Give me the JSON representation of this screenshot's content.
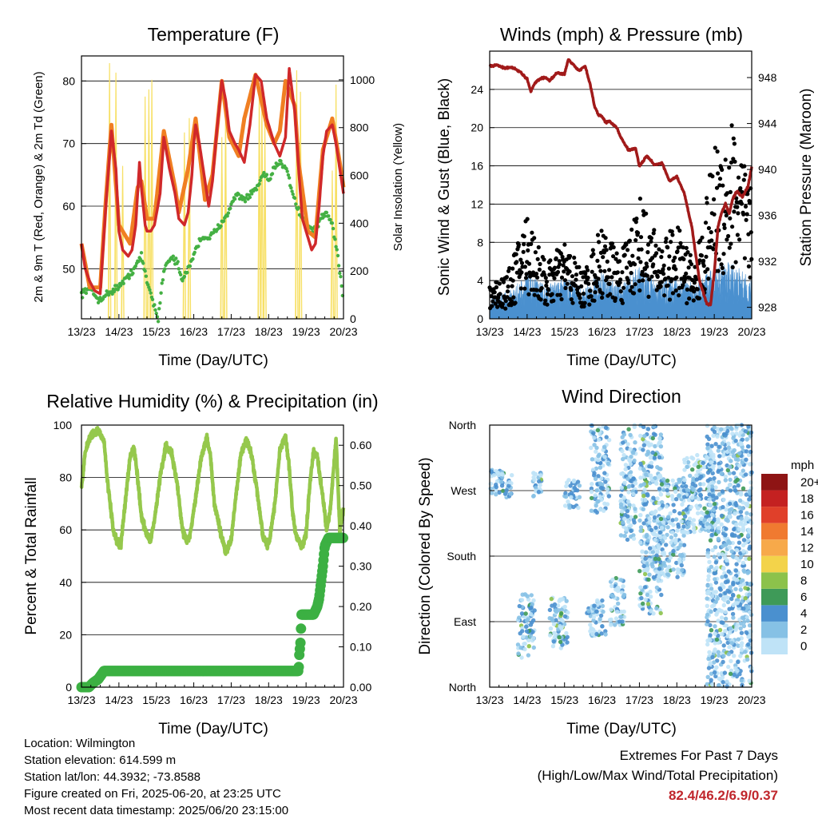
{
  "colors": {
    "temp_2m": "#d0282a",
    "temp_9m": "#f07f22",
    "dewpoint": "#44b043",
    "solar": "#f7e066",
    "wind": "#4a90cf",
    "gust": "#000000",
    "pressure": "#a11a1a",
    "rh": "#95c84c",
    "precip": "#3cb043",
    "extremes_text": "#c0262c"
  },
  "x_ticks": [
    "13/23",
    "14/23",
    "15/23",
    "16/23",
    "17/23",
    "18/23",
    "19/23",
    "20/23"
  ],
  "chart_data": [
    {
      "type": "line",
      "title": "Temperature (F)",
      "xlabel": "Time (Day/UTC)",
      "ylabel": "2m & 9m T (Red, Orange) & 2m Td (Green)",
      "y2label": "Solar Insolation (Yellow)",
      "ylim": [
        42,
        84
      ],
      "yticks": [
        50,
        60,
        70,
        80
      ],
      "y2lim": [
        0,
        1100
      ],
      "y2ticks": [
        0,
        200,
        400,
        600,
        800,
        1000
      ],
      "x_days": [
        0,
        7
      ],
      "grid": true,
      "series": [
        {
          "key": "t2",
          "x": [
            0,
            0.1,
            0.22,
            0.35,
            0.5,
            0.65,
            0.8,
            0.92,
            1.0,
            1.1,
            1.25,
            1.35,
            1.45,
            1.5,
            1.55,
            1.6,
            1.65,
            1.7,
            1.75,
            1.85,
            1.95,
            2.1,
            2.2,
            2.35,
            2.5,
            2.6,
            2.75,
            2.85,
            2.95,
            3.0,
            3.05,
            3.15,
            3.3,
            3.4,
            3.5,
            3.6,
            3.75,
            3.85,
            3.95,
            4.1,
            4.2,
            4.35,
            4.5,
            4.65,
            4.8,
            4.95,
            5.05,
            5.15,
            5.3,
            5.45,
            5.55,
            5.7,
            5.8,
            5.9,
            6.05,
            6.15,
            6.25,
            6.35,
            6.45,
            6.55,
            6.7,
            6.8,
            6.9,
            7.0
          ],
          "values": [
            54,
            50,
            48,
            46.5,
            46,
            60,
            72,
            66,
            56,
            53,
            52,
            53,
            57,
            62,
            67,
            63,
            60,
            57,
            56,
            56,
            57,
            62,
            71,
            66,
            62,
            58,
            57,
            59,
            65,
            70,
            73,
            70,
            64,
            60,
            64,
            71,
            80,
            77,
            72,
            70,
            69,
            67,
            73,
            81,
            80,
            74,
            72,
            70,
            68,
            71,
            82,
            75,
            66,
            58,
            55,
            53,
            54,
            60,
            68,
            72,
            73,
            70,
            66,
            62
          ]
        },
        {
          "key": "t9",
          "x": [
            0,
            0.22,
            0.5,
            0.65,
            0.8,
            1.0,
            1.3,
            1.5,
            1.6,
            1.75,
            1.95,
            2.2,
            2.5,
            2.6,
            2.85,
            3.05,
            3.3,
            3.5,
            3.75,
            3.95,
            4.2,
            4.35,
            4.65,
            4.95,
            5.15,
            5.3,
            5.45,
            5.7,
            5.8,
            6.05,
            6.25,
            6.45,
            6.7,
            6.9,
            7.0
          ],
          "values": [
            54,
            47,
            47,
            61,
            73,
            57,
            54,
            63,
            64,
            58,
            58,
            72,
            63,
            59,
            66,
            74,
            61,
            65,
            80,
            71,
            68,
            74,
            81,
            73,
            70,
            72,
            80,
            76,
            67,
            56,
            55,
            69,
            74,
            67,
            63
          ]
        },
        {
          "key": "td",
          "x": [
            0,
            0.2,
            0.45,
            0.7,
            0.95,
            1.15,
            1.4,
            1.6,
            1.75,
            1.9,
            2.05,
            2.2,
            2.4,
            2.55,
            2.7,
            2.85,
            3.05,
            3.2,
            3.4,
            3.6,
            3.8,
            4.0,
            4.15,
            4.35,
            4.55,
            4.7,
            4.85,
            5.0,
            5.15,
            5.3,
            5.5,
            5.6,
            5.75,
            5.9,
            6.05,
            6.2,
            6.4,
            6.55,
            6.7,
            6.85,
            7.0
          ],
          "values": [
            46,
            47,
            45,
            46,
            47,
            48,
            50,
            52,
            48,
            45,
            42,
            50,
            52,
            51,
            48,
            50,
            53,
            55,
            55,
            56,
            58,
            60,
            62,
            61,
            62,
            63,
            65,
            64,
            66,
            67,
            66,
            63,
            60,
            58,
            57,
            56,
            58,
            59,
            57,
            52,
            45
          ]
        },
        {
          "key": "solar",
          "type": "spikes",
          "peaks_day": [
            0.75,
            0.92,
            1.1,
            1.7,
            1.8,
            1.88,
            2.75,
            2.88,
            3.75,
            3.85,
            4.75,
            4.82,
            4.9,
            5.75,
            5.85,
            6.7,
            6.8
          ],
          "peaks_val": [
            1070,
            1030,
            640,
            930,
            960,
            1000,
            780,
            840,
            760,
            900,
            980,
            940,
            830,
            1040,
            950,
            620,
            980
          ]
        }
      ]
    },
    {
      "type": "scatter",
      "title": "Winds (mph) & Pressure (mb)",
      "xlabel": "Time (Day/UTC)",
      "ylabel": "Sonic Wind & Gust (Blue, Black)",
      "y2label": "Station Pressure (Maroon)",
      "ylim": [
        0,
        28
      ],
      "yticks": [
        0,
        4,
        8,
        12,
        16,
        20,
        24
      ],
      "y2lim": [
        927,
        950.3
      ],
      "y2ticks": [
        928,
        932,
        936,
        940,
        944,
        948
      ],
      "x_days": [
        0,
        7
      ],
      "grid": true,
      "series": [
        {
          "key": "pressure",
          "x": [
            0,
            0.2,
            0.4,
            0.6,
            0.8,
            1.0,
            1.1,
            1.2,
            1.35,
            1.5,
            1.6,
            1.8,
            2.0,
            2.1,
            2.2,
            2.4,
            2.55,
            2.7,
            2.8,
            2.9,
            3.0,
            3.1,
            3.2,
            3.4,
            3.5,
            3.7,
            3.9,
            4.0,
            4.2,
            4.4,
            4.6,
            4.8,
            5.0,
            5.2,
            5.4,
            5.6,
            5.8,
            5.9,
            6.0,
            6.1,
            6.2,
            6.3,
            6.4,
            6.5,
            6.6,
            6.75,
            6.9,
            7.0
          ],
          "values": [
            949,
            949.1,
            948.8,
            948.9,
            948.5,
            947.9,
            946.8,
            947.5,
            947.9,
            948,
            947.7,
            948.4,
            948.3,
            949.6,
            949.2,
            948.6,
            949,
            947.2,
            945.5,
            944.8,
            944.6,
            944.1,
            944.2,
            943.6,
            942.8,
            941.7,
            941.8,
            940.3,
            941.2,
            940.4,
            940.6,
            939,
            939.4,
            937.9,
            935,
            930.4,
            928.3,
            928.2,
            931,
            935,
            936.3,
            937,
            936.2,
            937.5,
            938.1,
            937.6,
            938.5,
            940.2
          ]
        },
        {
          "key": "wind_mean",
          "x": [
            0,
            0.5,
            1.0,
            1.5,
            2.0,
            2.5,
            3.0,
            3.5,
            4.0,
            4.5,
            5.0,
            5.5,
            6.0,
            6.5,
            7.0
          ],
          "values": [
            1.5,
            1.8,
            3,
            2.2,
            2.8,
            2,
            3.2,
            2.3,
            3.5,
            2.5,
            3,
            2.2,
            3.5,
            3.8,
            2.5
          ]
        },
        {
          "key": "gust_mean",
          "x": [
            0,
            0.5,
            1.0,
            1.5,
            2.0,
            2.5,
            3.0,
            3.5,
            4.0,
            4.5,
            5.0,
            5.5,
            6.0,
            6.5,
            7.0
          ],
          "values": [
            2.5,
            3,
            7,
            3.5,
            5,
            3,
            6,
            4,
            8,
            5,
            6,
            3.5,
            11,
            13,
            8
          ]
        }
      ]
    },
    {
      "type": "line",
      "title": "Relative Humidity (%) & Precipitation (in)",
      "xlabel": "Time (Day/UTC)",
      "ylabel": "Percent & Total Rainfall",
      "ylim": [
        0,
        100
      ],
      "yticks": [
        0,
        20,
        40,
        60,
        80,
        100
      ],
      "y2lim": [
        0,
        0.65
      ],
      "y2ticks": [
        "0.00",
        "0.10",
        "0.20",
        "0.30",
        "0.40",
        "0.50",
        "0.60"
      ],
      "x_days": [
        0,
        7
      ],
      "grid": true,
      "series": [
        {
          "key": "rh",
          "x": [
            0,
            0.1,
            0.25,
            0.45,
            0.6,
            0.7,
            0.85,
            0.95,
            1.05,
            1.15,
            1.3,
            1.4,
            1.5,
            1.6,
            1.75,
            1.85,
            1.95,
            2.1,
            2.25,
            2.4,
            2.55,
            2.7,
            2.8,
            2.9,
            3.05,
            3.2,
            3.35,
            3.45,
            3.55,
            3.7,
            3.85,
            4.0,
            4.15,
            4.25,
            4.4,
            4.55,
            4.7,
            4.85,
            5.0,
            5.15,
            5.3,
            5.45,
            5.55,
            5.65,
            5.75,
            5.9,
            6.0,
            6.1,
            6.2,
            6.3,
            6.45,
            6.55,
            6.65,
            6.8,
            6.9,
            7.0
          ],
          "values": [
            76,
            90,
            96,
            98,
            94,
            78,
            60,
            55,
            54,
            68,
            88,
            91,
            80,
            65,
            58,
            56,
            64,
            80,
            92,
            90,
            78,
            60,
            56,
            58,
            72,
            88,
            95,
            88,
            70,
            60,
            52,
            56,
            76,
            88,
            95,
            88,
            74,
            57,
            54,
            68,
            90,
            96,
            84,
            65,
            57,
            54,
            58,
            78,
            90,
            88,
            72,
            60,
            68,
            95,
            60,
            68
          ]
        },
        {
          "key": "precip",
          "x": [
            0,
            0.2,
            0.3,
            0.45,
            0.6,
            5.8,
            5.82,
            5.85,
            5.88,
            6.0,
            6.2,
            6.3,
            6.35,
            6.4,
            6.45,
            6.5,
            6.6,
            6.7,
            6.8,
            7.0
          ],
          "values": [
            0,
            0,
            0.01,
            0.02,
            0.04,
            0.04,
            0.08,
            0.11,
            0.18,
            0.18,
            0.18,
            0.2,
            0.22,
            0.26,
            0.3,
            0.35,
            0.37,
            0.37,
            0.37,
            0.37
          ]
        }
      ]
    },
    {
      "type": "scatter",
      "title": "Wind Direction",
      "xlabel": "Time (Day/UTC)",
      "ylabel": "Direction (Colored By Speed)",
      "yticks": [
        "North",
        "East",
        "South",
        "West",
        "North"
      ],
      "ylim": [
        0,
        360
      ],
      "x_days": [
        0,
        7
      ],
      "grid": true,
      "colorbar": {
        "title": "mph",
        "labels": [
          "0",
          "2",
          "4",
          "6",
          "8",
          "10",
          "12",
          "14",
          "16",
          "18",
          "20+"
        ],
        "colors": [
          "#bfe3f7",
          "#86c1e5",
          "#4a90cf",
          "#3e9a58",
          "#8cc24b",
          "#f3d34a",
          "#f7a94a",
          "#f07a30",
          "#e0402a",
          "#c42121",
          "#8e1414"
        ]
      },
      "clusters": [
        {
          "day": [
            0.0,
            0.6
          ],
          "dir": [
            260,
            300
          ]
        },
        {
          "day": [
            0.75,
            1.2
          ],
          "dir": [
            40,
            130
          ]
        },
        {
          "day": [
            1.15,
            1.4
          ],
          "dir": [
            260,
            295
          ]
        },
        {
          "day": [
            1.6,
            2.1
          ],
          "dir": [
            50,
            125
          ]
        },
        {
          "day": [
            2.0,
            2.4
          ],
          "dir": [
            245,
            285
          ]
        },
        {
          "day": [
            2.6,
            3.1
          ],
          "dir": [
            70,
            120
          ]
        },
        {
          "day": [
            2.7,
            3.2
          ],
          "dir": [
            240,
            360
          ]
        },
        {
          "day": [
            3.2,
            3.6
          ],
          "dir": [
            85,
            150
          ]
        },
        {
          "day": [
            3.5,
            3.9
          ],
          "dir": [
            200,
            360
          ]
        },
        {
          "day": [
            4.0,
            4.6
          ],
          "dir": [
            100,
            360
          ]
        },
        {
          "day": [
            4.5,
            5.2
          ],
          "dir": [
            150,
            290
          ]
        },
        {
          "day": [
            5.2,
            6.0
          ],
          "dir": [
            210,
            320
          ]
        },
        {
          "day": [
            5.8,
            7.0
          ],
          "dir": [
            0,
            360
          ]
        }
      ]
    }
  ],
  "info": {
    "location": "Location: Wilmington",
    "elevation": "Station elevation: 614.599 m",
    "latlon": "Station lat/lon: 44.3932; -73.8588",
    "created": "Figure created on Fri, 2025-06-20, at 23:25 UTC",
    "recent": "Most recent data timestamp: 2025/06/20 23:15:00"
  },
  "extremes": {
    "line1": "Extremes For Past 7 Days",
    "line2": "(High/Low/Max Wind/Total Precipitation)",
    "values": "82.4/46.2/6.9/0.37"
  }
}
